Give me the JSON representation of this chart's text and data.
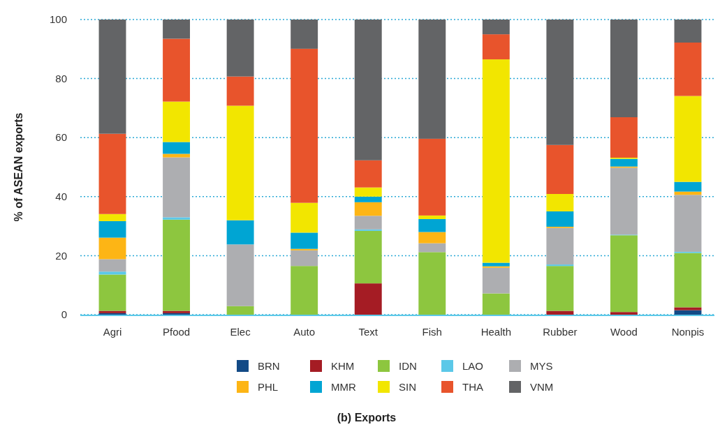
{
  "chart_data": {
    "type": "bar",
    "title": "(b) Exports",
    "ylabel": "% of ASEAN exports",
    "stacked": true,
    "grid": "y",
    "legend": "bottom",
    "categories": [
      "Agri",
      "Pfood",
      "Elec",
      "Auto",
      "Text",
      "Fish",
      "Health",
      "Rubber",
      "Wood",
      "Nonpis"
    ],
    "ylim": [
      0,
      100
    ],
    "yticks": [
      0,
      20,
      40,
      60,
      80,
      100
    ],
    "series": [
      {
        "name": "BRN",
        "color": "#134a86",
        "values": [
          0.5,
          0.5,
          0,
          0,
          0,
          0,
          0,
          0,
          0,
          1.5
        ]
      },
      {
        "name": "KHM",
        "color": "#a51c24",
        "values": [
          0.8,
          0.8,
          0,
          0,
          10.6,
          0,
          0,
          1.3,
          0.9,
          1.0
        ]
      },
      {
        "name": "IDN",
        "color": "#8dc63f",
        "values": [
          12.3,
          30.9,
          2.9,
          16.5,
          17.8,
          21.2,
          7.2,
          15.2,
          26.0,
          18.4
        ]
      },
      {
        "name": "LAO",
        "color": "#5bc8e8",
        "values": [
          1.0,
          0.8,
          0,
          0,
          0.5,
          0,
          0,
          0.5,
          0.2,
          0.4
        ]
      },
      {
        "name": "MYS",
        "color": "#adaeb1",
        "values": [
          4.2,
          20.3,
          20.9,
          5.3,
          4.6,
          3.0,
          8.7,
          12.4,
          22.7,
          19.3
        ]
      },
      {
        "name": "PHL",
        "color": "#fdb515",
        "values": [
          7.3,
          1.2,
          0,
          0.5,
          4.6,
          3.8,
          0.5,
          0.4,
          0.4,
          1.1
        ]
      },
      {
        "name": "MMR",
        "color": "#00a5d3",
        "values": [
          5.6,
          4.0,
          8.2,
          5.5,
          1.9,
          4.4,
          1.2,
          5.2,
          2.6,
          3.3
        ]
      },
      {
        "name": "SIN",
        "color": "#f2e600",
        "values": [
          2.4,
          13.7,
          38.8,
          10.1,
          3.1,
          1.2,
          68.9,
          5.9,
          0.4,
          29.1
        ]
      },
      {
        "name": "THA",
        "color": "#e8542c",
        "values": [
          27.2,
          21.3,
          9.9,
          52.2,
          9.2,
          26.0,
          8.5,
          16.6,
          13.7,
          18.1
        ]
      },
      {
        "name": "VNM",
        "color": "#636466",
        "values": [
          38.7,
          6.5,
          19.3,
          9.9,
          47.7,
          40.4,
          5.0,
          42.5,
          33.1,
          7.8
        ]
      }
    ]
  }
}
